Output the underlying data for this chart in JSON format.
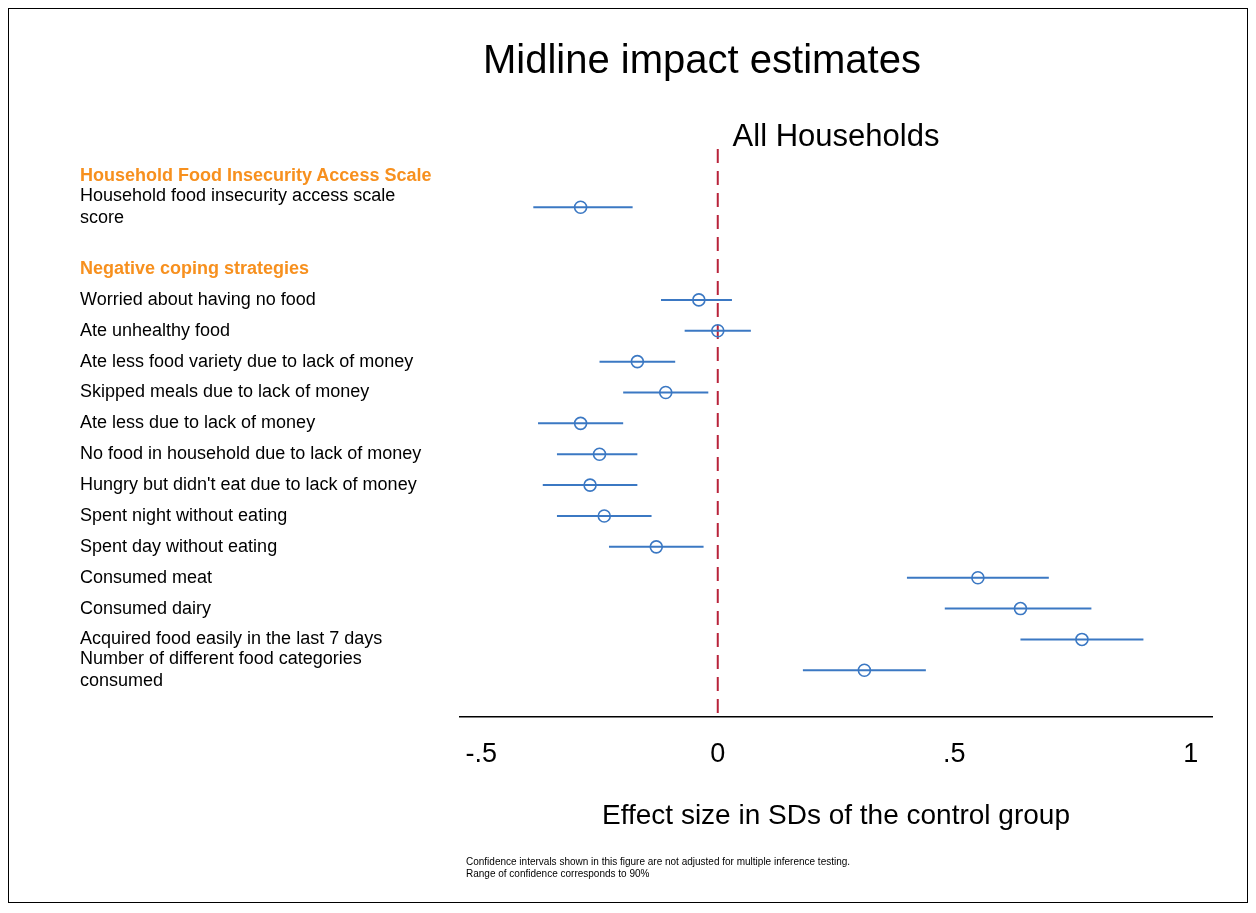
{
  "chart_data": {
    "type": "scatter",
    "orientation": "horizontal",
    "title": "Midline impact estimates",
    "subtitle": "All Households",
    "xlabel": "Effect size in SDs of the control group",
    "categories": [
      "Household Food Insecurity Access Scale",
      "Household food insecurity access scale score",
      null,
      "Negative coping strategies",
      "Worried about having no food",
      "Ate unhealthy food",
      "Ate less food variety due to lack of money",
      "Skipped meals due to lack of money",
      "Ate less due to lack of money",
      "No food in household due to lack of money",
      "Hungry but didn't eat due to lack of money",
      "Spent night without eating",
      "Spent day without eating",
      "Consumed meat",
      "Consumed dairy",
      "Acquired food easily in the last 7 days",
      "Number of different food categories consumed"
    ],
    "series": [
      {
        "type": "scatter",
        "color": "#3b78c3",
        "values": [
          null,
          -0.29,
          null,
          null,
          -0.04,
          0.0,
          -0.17,
          -0.11,
          -0.29,
          -0.25,
          -0.27,
          -0.24,
          -0.13,
          0.55,
          0.64,
          0.77,
          0.31
        ],
        "errors": [
          null,
          [
            -0.39,
            -0.18
          ],
          null,
          null,
          [
            -0.12,
            0.03
          ],
          [
            -0.07,
            0.07
          ],
          [
            -0.25,
            -0.09
          ],
          [
            -0.2,
            -0.02
          ],
          [
            -0.38,
            -0.2
          ],
          [
            -0.34,
            -0.17
          ],
          [
            -0.37,
            -0.17
          ],
          [
            -0.34,
            -0.14
          ],
          [
            -0.23,
            -0.03
          ],
          [
            0.4,
            0.7
          ],
          [
            0.48,
            0.79
          ],
          [
            0.64,
            0.9
          ],
          [
            0.18,
            0.44
          ]
        ]
      }
    ],
    "xlim": [
      -0.545,
      1.045
    ],
    "xticks": [
      {
        "value": -0.5,
        "label": "-.5"
      },
      0,
      {
        "value": 0.5,
        "label": ".5"
      },
      1
    ],
    "ref_lines": [
      {
        "axis": "x",
        "value": 0,
        "color": "#b8233a",
        "line_style": "dashed"
      }
    ],
    "marker": "circle",
    "grid": false,
    "legend": false,
    "annotations": [
      "Confidence intervals shown in this figure are not adjusted for multiple inference testing.",
      "Range of confidence corresponds to 90%"
    ]
  }
}
